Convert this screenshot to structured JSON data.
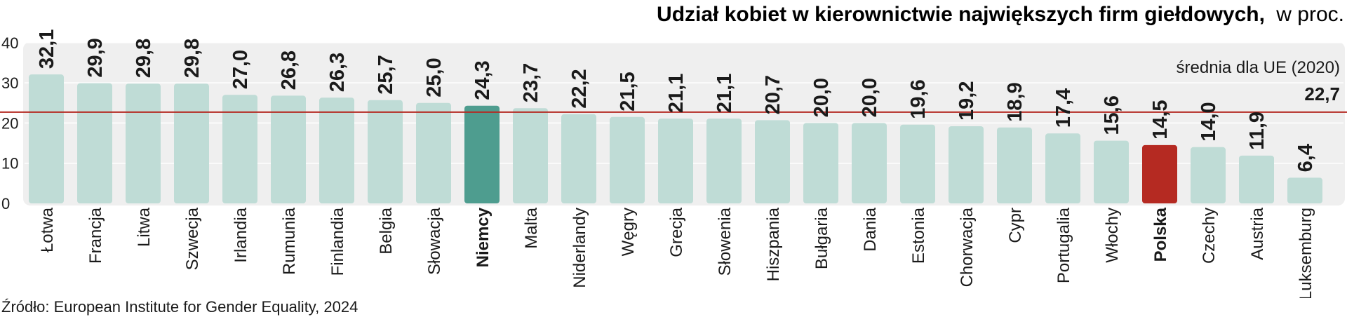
{
  "colors": {
    "panel": "#efefef",
    "bar": "#bfdcd6",
    "bar_highlight": "#4e9d8f",
    "bar_poland": "#b52a22",
    "average_line": "#b52a22",
    "gridline": "#ffffff",
    "text": "#1a1a1a"
  },
  "chart_data": {
    "type": "bar",
    "title": "Udział kobiet w kierownictwie największych firm giełdowych,",
    "title_suffix": "w proc.",
    "ylim": [
      0,
      40
    ],
    "yticks": [
      "0",
      "10",
      "20",
      "30",
      "40"
    ],
    "grid": true,
    "categories": [
      "Łotwa",
      "Francja",
      "Litwa",
      "Szwecja",
      "Irlandia",
      "Rumunia",
      "Finlandia",
      "Belgia",
      "Słowacja",
      "Niemcy",
      "Malta",
      "Niderlandy",
      "Węgry",
      "Grecja",
      "Słowenia",
      "Hiszpania",
      "Bułgaria",
      "Dania",
      "Estonia",
      "Chorwacja",
      "Cypr",
      "Portugalia",
      "Włochy",
      "Polska",
      "Czechy",
      "Austria",
      "Luksemburg"
    ],
    "values": [
      32.1,
      29.9,
      29.8,
      29.8,
      27.0,
      26.8,
      26.3,
      25.7,
      25.0,
      24.3,
      23.7,
      22.2,
      21.5,
      21.1,
      21.1,
      20.7,
      20.0,
      20.0,
      19.6,
      19.2,
      18.9,
      17.4,
      15.6,
      14.5,
      14.0,
      11.9,
      6.4
    ],
    "value_labels": [
      "32,1",
      "29,9",
      "29,8",
      "29,8",
      "27,0",
      "26,8",
      "26,3",
      "25,7",
      "25,0",
      "24,3",
      "23,7",
      "22,2",
      "21,5",
      "21,1",
      "21,1",
      "20,7",
      "20,0",
      "20,0",
      "19,6",
      "19,2",
      "18,9",
      "17,4",
      "15,6",
      "14,5",
      "14,0",
      "11,9",
      "6,4"
    ],
    "highlight": [
      "Niemcy",
      "Polska"
    ],
    "average": {
      "label": "średnia dla UE (2020)",
      "value": 22.7,
      "value_label": "22,7"
    }
  },
  "source": "Źródło: European Institute for Gender Equality, 2024"
}
